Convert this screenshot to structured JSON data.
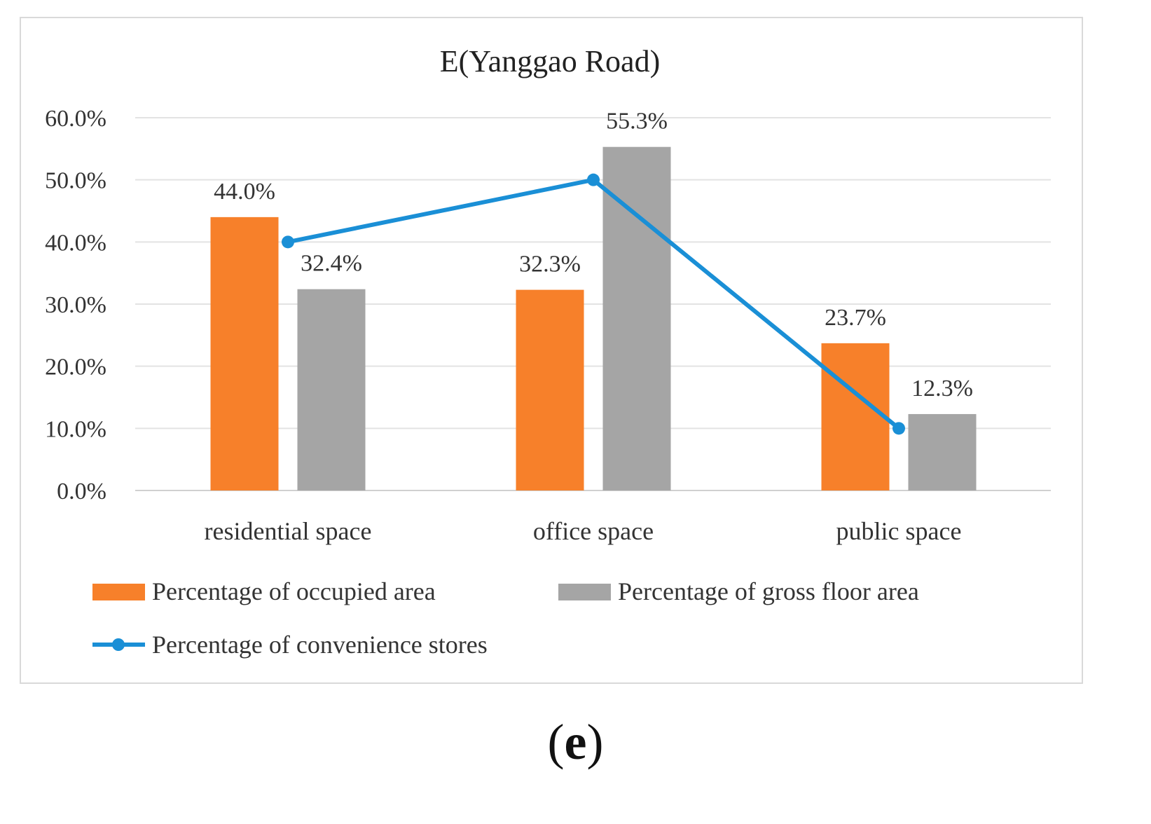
{
  "chart_data": {
    "type": "bar",
    "title": "E(Yanggao Road)",
    "categories": [
      "residential space",
      "office space",
      "public space"
    ],
    "series": [
      {
        "name": "Percentage of occupied area",
        "kind": "bar",
        "color": "#f7802a",
        "values": [
          44.0,
          32.3,
          23.7
        ],
        "labels": [
          "44.0%",
          "32.3%",
          "23.7%"
        ]
      },
      {
        "name": "Percentage of gross floor area",
        "kind": "bar",
        "color": "#a5a5a5",
        "values": [
          32.4,
          55.3,
          12.3
        ],
        "labels": [
          "32.4%",
          "55.3%",
          "12.3%"
        ]
      },
      {
        "name": "Percentage of convenience stores",
        "kind": "line",
        "color": "#1a8fd6",
        "values": [
          40.0,
          50.0,
          10.0
        ]
      }
    ],
    "ylim": [
      0,
      60
    ],
    "yticks": [
      0,
      10,
      20,
      30,
      40,
      50,
      60
    ],
    "ytick_labels": [
      "0.0%",
      "10.0%",
      "20.0%",
      "30.0%",
      "40.0%",
      "50.0%",
      "60.0%"
    ],
    "xlabel": "",
    "ylabel": "",
    "grid": true,
    "legend_position": "bottom"
  },
  "caption": {
    "open": "(",
    "letter": "e",
    "close": ")"
  }
}
